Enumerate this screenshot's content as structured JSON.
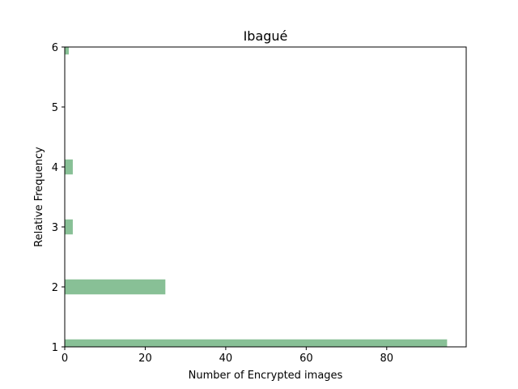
{
  "chart_data": {
    "type": "bar",
    "orientation": "horizontal",
    "title": "Ibagué",
    "xlabel": "Number of Encrypted images",
    "ylabel": "Relative Frequency",
    "xlim": [
      0,
      99.75
    ],
    "ylim": [
      1,
      6
    ],
    "x_ticks": [
      "0",
      "20",
      "40",
      "60",
      "80"
    ],
    "y_ticks": [
      "1",
      "2",
      "3",
      "4",
      "5",
      "6"
    ],
    "bar_color": "#88c096",
    "bars": [
      {
        "y": 1.0,
        "value": 95
      },
      {
        "y": 2.0,
        "value": 25
      },
      {
        "y": 3.0,
        "value": 2
      },
      {
        "y": 4.0,
        "value": 2
      },
      {
        "y": 5.0,
        "value": 0
      },
      {
        "y": 6.0,
        "value": 1
      }
    ],
    "bar_height": 0.25,
    "grid": false,
    "legend": "none"
  }
}
